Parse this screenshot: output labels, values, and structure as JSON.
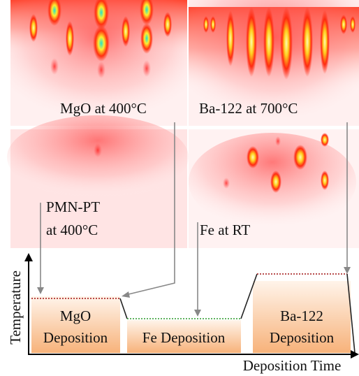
{
  "images": {
    "mgo": {
      "label": "MgO at 400°C"
    },
    "ba122": {
      "label": "Ba-122 at 700°C"
    },
    "pmn_pt": {
      "label": [
        "PMN-PT",
        "at 400°C"
      ]
    },
    "fe": {
      "label": "Fe at RT"
    }
  },
  "profile": {
    "y_axis_label": "Temperature",
    "x_axis_label": "Deposition Time",
    "stages": [
      {
        "label": [
          "MgO",
          "Deposition"
        ]
      },
      {
        "label": [
          "Fe Deposition"
        ]
      },
      {
        "label": [
          "Ba-122",
          "Deposition"
        ]
      }
    ]
  }
}
